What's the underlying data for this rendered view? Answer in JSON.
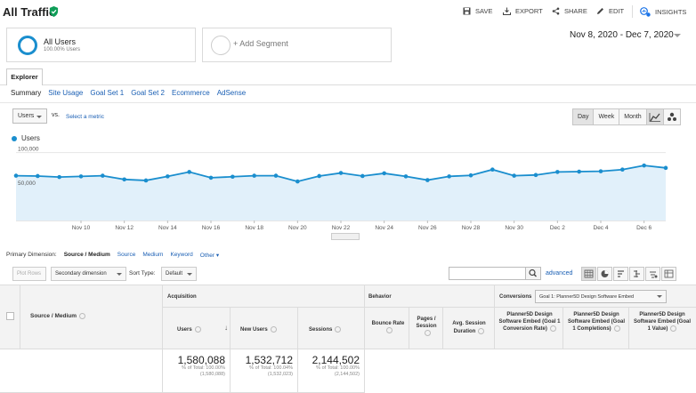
{
  "header": {
    "title": "All Traffic",
    "toolbar": {
      "save": "SAVE",
      "export": "EXPORT",
      "share": "SHARE",
      "edit": "EDIT",
      "insights": "INSIGHTS"
    }
  },
  "segments": {
    "active_name": "All Users",
    "active_sub": "100.00% Users",
    "add_label": "+ Add Segment"
  },
  "date_range": "Nov 8, 2020 - Dec 7, 2020",
  "tabs": {
    "explorer": "Explorer",
    "subtabs": [
      "Summary",
      "Site Usage",
      "Goal Set 1",
      "Goal Set 2",
      "Ecommerce",
      "AdSense"
    ]
  },
  "metric_row": {
    "metric": "Users",
    "vs": "vs.",
    "select_metric": "Select a metric",
    "periods": [
      "Day",
      "Week",
      "Month"
    ],
    "active_period": "Day"
  },
  "chart_data": {
    "type": "area",
    "series": [
      {
        "name": "Users",
        "values": [
          66000,
          65500,
          64000,
          65000,
          66000,
          60500,
          59000,
          65000,
          71500,
          63000,
          64500,
          66000,
          66000,
          57500,
          65500,
          70000,
          65500,
          69500,
          65000,
          59500,
          65000,
          66500,
          75000,
          66000,
          67000,
          71500,
          72000,
          72500,
          75000,
          81000,
          77500
        ]
      }
    ],
    "x": [
      "Nov 7",
      "Nov 8",
      "Nov 9",
      "Nov 10",
      "Nov 11",
      "Nov 12",
      "Nov 13",
      "Nov 14",
      "Nov 15",
      "Nov 16",
      "Nov 17",
      "Nov 18",
      "Nov 19",
      "Nov 20",
      "Nov 21",
      "Nov 22",
      "Nov 23",
      "Nov 24",
      "Nov 25",
      "Nov 26",
      "Nov 27",
      "Nov 28",
      "Nov 29",
      "Nov 30",
      "Dec 1",
      "Dec 2",
      "Dec 3",
      "Dec 4",
      "Dec 5",
      "Dec 6",
      "Dec 7"
    ],
    "tick_labels": [
      "Nov 10",
      "Nov 12",
      "Nov 14",
      "Nov 16",
      "Nov 18",
      "Nov 20",
      "Nov 22",
      "Nov 24",
      "Nov 26",
      "Nov 28",
      "Nov 30",
      "Dec 2",
      "Dec 4",
      "Dec 6"
    ],
    "y_tick_labels": [
      "100,000",
      "50,000"
    ],
    "ylim": [
      0,
      110000
    ],
    "grid": true,
    "color": "#1a8ece",
    "fill_color": "#e1f0fa"
  },
  "primary_dimension": {
    "label": "Primary Dimension:",
    "active": "Source / Medium",
    "options": [
      "Source",
      "Medium",
      "Keyword",
      "Other"
    ]
  },
  "controls": {
    "plot_rows": "Plot Rows",
    "secondary_dimension": "Secondary dimension",
    "sort_type_label": "Sort Type:",
    "sort_type": "Default",
    "advanced": "advanced"
  },
  "table": {
    "dimension_header": "Source / Medium",
    "groups": {
      "acquisition": "Acquisition",
      "behavior": "Behavior",
      "conversions": "Conversions",
      "goal_select": "Goal 1: Planner5D Design Software Embed"
    },
    "columns": {
      "users": "Users",
      "new_users": "New Users",
      "sessions": "Sessions",
      "bounce_rate": "Bounce Rate",
      "pages_session": "Pages / Session",
      "avg_session": "Avg. Session Duration",
      "goal_conv_rate": "Planner5D Design Software Embed (Goal 1 Conversion Rate)",
      "goal_completions": "Planner5D Design Software Embed (Goal 1 Completions)",
      "goal_value": "Planner5D Design Software Embed (Goal 1 Value)"
    },
    "totals": {
      "users": "1,580,088",
      "users_pct": "% of Total: 100.00%",
      "users_abs": "(1,580,088)",
      "new_users": "1,532,712",
      "new_users_pct": "% of Total: 100.04%",
      "new_users_abs": "(1,532,023)",
      "sessions": "2,144,502",
      "sessions_pct": "% of Total: 100.00%",
      "sessions_abs": "(2,144,502)"
    }
  }
}
